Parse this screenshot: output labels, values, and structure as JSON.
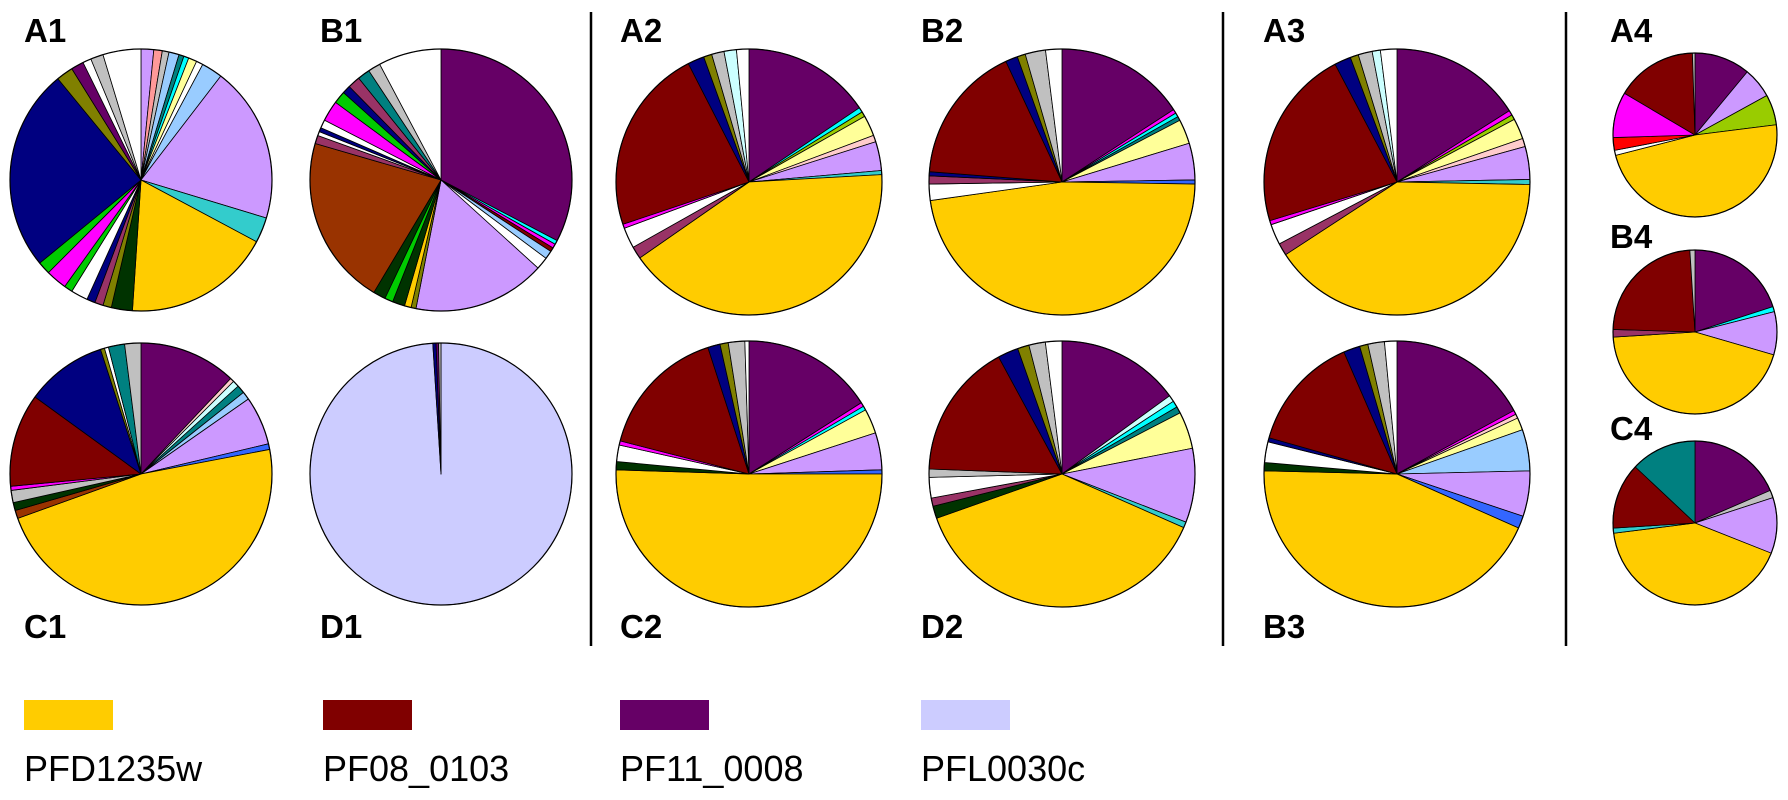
{
  "colors": {
    "PFD1235w": "#FFCC00",
    "PF08_0103": "#800000",
    "PF11_0008": "#660066",
    "PFL0030c": "#CCCCFF",
    "navy": "#000080",
    "lavender": "#CC99FF",
    "olive": "#808000",
    "teal": "#008080",
    "darkgreen": "#003300",
    "cyan": "#00FFFF",
    "lightyellow": "#FFFF99",
    "magenta": "#FF00FF",
    "brown": "#993300",
    "lightblue": "#99CCFF",
    "skyblue": "#CCFFFF",
    "green": "#00CC00",
    "pink": "#FF9999",
    "red": "#FF0000",
    "yellowgreen": "#99CC00",
    "blue": "#3366FF",
    "lightpink": "#FFCCCC",
    "white": "#FFFFFF",
    "gray": "#C0C0C0",
    "plum": "#993366",
    "darkteal": "#33CCCC",
    "dividers": "#000000"
  },
  "chart_data": {
    "type": "pie",
    "start": "12 o'clock",
    "direction": "clockwise",
    "units": "percent of panel total",
    "legend": [
      {
        "name": "PFD1235w",
        "color_key": "PFD1235w"
      },
      {
        "name": "PF08_0103",
        "color_key": "PF08_0103"
      },
      {
        "name": "PF11_0008",
        "color_key": "PF11_0008"
      },
      {
        "name": "PFL0030c",
        "color_key": "PFL0030c"
      }
    ],
    "panels": [
      {
        "label": "A1",
        "size": "large",
        "slices": [
          {
            "c": "lavender",
            "v": 1.5
          },
          {
            "c": "pink",
            "v": 1.0
          },
          {
            "c": "gray",
            "v": 0.8
          },
          {
            "c": "lightblue",
            "v": 1.2
          },
          {
            "c": "teal",
            "v": 0.6
          },
          {
            "c": "cyan",
            "v": 0.6
          },
          {
            "c": "lightyellow",
            "v": 1.0
          },
          {
            "c": "white",
            "v": 0.8
          },
          {
            "c": "lightblue",
            "v": 2.5
          },
          {
            "c": "lavender",
            "v": 18.5
          },
          {
            "c": "darkteal",
            "v": 3.0
          },
          {
            "c": "PFD1235w",
            "v": 17.5
          },
          {
            "c": "darkgreen",
            "v": 2.5
          },
          {
            "c": "olive",
            "v": 1.0
          },
          {
            "c": "plum",
            "v": 1.0
          },
          {
            "c": "navy",
            "v": 1.0
          },
          {
            "c": "white",
            "v": 2.0
          },
          {
            "c": "green",
            "v": 1.0
          },
          {
            "c": "magenta",
            "v": 2.5
          },
          {
            "c": "green",
            "v": 1.5
          },
          {
            "c": "navy",
            "v": 24.0
          },
          {
            "c": "olive",
            "v": 2.0
          },
          {
            "c": "PF11_0008",
            "v": 1.5
          },
          {
            "c": "white",
            "v": 1.0
          },
          {
            "c": "gray",
            "v": 1.5
          },
          {
            "c": "white",
            "v": 4.5
          }
        ]
      },
      {
        "label": "B1",
        "size": "large",
        "slices": [
          {
            "c": "PF11_0008",
            "v": 32.0
          },
          {
            "c": "cyan",
            "v": 0.5
          },
          {
            "c": "magenta",
            "v": 0.5
          },
          {
            "c": "PF08_0103",
            "v": 0.5
          },
          {
            "c": "lightblue",
            "v": 1.0
          },
          {
            "c": "white",
            "v": 1.5
          },
          {
            "c": "lavender",
            "v": 16.0
          },
          {
            "c": "olive",
            "v": 0.6
          },
          {
            "c": "PFD1235w",
            "v": 0.8
          },
          {
            "c": "darkgreen",
            "v": 1.5
          },
          {
            "c": "green",
            "v": 1.0
          },
          {
            "c": "darkgreen",
            "v": 1.5
          },
          {
            "c": "brown",
            "v": 20.5
          },
          {
            "c": "plum",
            "v": 1.0
          },
          {
            "c": "white",
            "v": 0.5
          },
          {
            "c": "navy",
            "v": 0.5
          },
          {
            "c": "white",
            "v": 1.0
          },
          {
            "c": "magenta",
            "v": 2.5
          },
          {
            "c": "green",
            "v": 1.5
          },
          {
            "c": "navy",
            "v": 1.0
          },
          {
            "c": "plum",
            "v": 1.5
          },
          {
            "c": "teal",
            "v": 1.5
          },
          {
            "c": "gray",
            "v": 1.5
          },
          {
            "c": "white",
            "v": 7.6
          }
        ]
      },
      {
        "label": "C1",
        "size": "large",
        "slices": [
          {
            "c": "PF11_0008",
            "v": 12.0
          },
          {
            "c": "lightpink",
            "v": 0.5
          },
          {
            "c": "skyblue",
            "v": 0.8
          },
          {
            "c": "teal",
            "v": 1.0
          },
          {
            "c": "lightblue",
            "v": 1.0
          },
          {
            "c": "lavender",
            "v": 6.0
          },
          {
            "c": "blue",
            "v": 0.7
          },
          {
            "c": "PFD1235w",
            "v": 47.5
          },
          {
            "c": "brown",
            "v": 1.0
          },
          {
            "c": "darkgreen",
            "v": 1.0
          },
          {
            "c": "gray",
            "v": 1.5
          },
          {
            "c": "magenta",
            "v": 0.5
          },
          {
            "c": "PF08_0103",
            "v": 11.5
          },
          {
            "c": "navy",
            "v": 10.0
          },
          {
            "c": "olive",
            "v": 0.5
          },
          {
            "c": "white",
            "v": 0.5
          },
          {
            "c": "teal",
            "v": 2.0
          },
          {
            "c": "gray",
            "v": 2.0
          }
        ]
      },
      {
        "label": "D1",
        "size": "large",
        "slices": [
          {
            "c": "PFL0030c",
            "v": 99.0
          },
          {
            "c": "navy",
            "v": 0.4
          },
          {
            "c": "PF11_0008",
            "v": 0.3
          },
          {
            "c": "gray",
            "v": 0.3
          }
        ]
      },
      {
        "label": "A2",
        "size": "large",
        "slices": [
          {
            "c": "PF11_0008",
            "v": 15.5
          },
          {
            "c": "cyan",
            "v": 0.6
          },
          {
            "c": "yellowgreen",
            "v": 0.6
          },
          {
            "c": "lightyellow",
            "v": 2.5
          },
          {
            "c": "lightpink",
            "v": 0.8
          },
          {
            "c": "lavender",
            "v": 3.5
          },
          {
            "c": "darkteal",
            "v": 0.5
          },
          {
            "c": "PFD1235w",
            "v": 41.0
          },
          {
            "c": "plum",
            "v": 1.5
          },
          {
            "c": "white",
            "v": 2.5
          },
          {
            "c": "magenta",
            "v": 0.5
          },
          {
            "c": "PF08_0103",
            "v": 22.5
          },
          {
            "c": "navy",
            "v": 2.0
          },
          {
            "c": "olive",
            "v": 1.0
          },
          {
            "c": "gray",
            "v": 1.5
          },
          {
            "c": "skyblue",
            "v": 1.5
          },
          {
            "c": "white",
            "v": 1.5
          }
        ]
      },
      {
        "label": "B2",
        "size": "large",
        "slices": [
          {
            "c": "PF11_0008",
            "v": 16.0
          },
          {
            "c": "magenta",
            "v": 0.5
          },
          {
            "c": "cyan",
            "v": 0.5
          },
          {
            "c": "teal",
            "v": 0.5
          },
          {
            "c": "lightyellow",
            "v": 3.0
          },
          {
            "c": "lavender",
            "v": 4.5
          },
          {
            "c": "blue",
            "v": 0.5
          },
          {
            "c": "PFD1235w",
            "v": 48.0
          },
          {
            "c": "white",
            "v": 2.0
          },
          {
            "c": "plum",
            "v": 1.0
          },
          {
            "c": "navy",
            "v": 0.5
          },
          {
            "c": "PF08_0103",
            "v": 17.0
          },
          {
            "c": "navy",
            "v": 1.5
          },
          {
            "c": "olive",
            "v": 1.0
          },
          {
            "c": "gray",
            "v": 2.5
          },
          {
            "c": "white",
            "v": 2.0
          }
        ]
      },
      {
        "label": "C2",
        "size": "large",
        "slices": [
          {
            "c": "PF11_0008",
            "v": 16.0
          },
          {
            "c": "magenta",
            "v": 0.5
          },
          {
            "c": "cyan",
            "v": 0.5
          },
          {
            "c": "lightyellow",
            "v": 3.0
          },
          {
            "c": "lavender",
            "v": 4.5
          },
          {
            "c": "blue",
            "v": 0.5
          },
          {
            "c": "PFD1235w",
            "v": 50.5
          },
          {
            "c": "darkgreen",
            "v": 1.0
          },
          {
            "c": "white",
            "v": 2.0
          },
          {
            "c": "magenta",
            "v": 0.5
          },
          {
            "c": "PF08_0103",
            "v": 16.0
          },
          {
            "c": "navy",
            "v": 1.5
          },
          {
            "c": "olive",
            "v": 1.0
          },
          {
            "c": "gray",
            "v": 2.0
          },
          {
            "c": "white",
            "v": 0.5
          }
        ]
      },
      {
        "label": "D2",
        "size": "large",
        "slices": [
          {
            "c": "PF11_0008",
            "v": 15.0
          },
          {
            "c": "skyblue",
            "v": 0.8
          },
          {
            "c": "cyan",
            "v": 0.8
          },
          {
            "c": "teal",
            "v": 0.8
          },
          {
            "c": "lightyellow",
            "v": 4.5
          },
          {
            "c": "lavender",
            "v": 9.0
          },
          {
            "c": "darkteal",
            "v": 0.7
          },
          {
            "c": "PFD1235w",
            "v": 38.0
          },
          {
            "c": "darkgreen",
            "v": 1.5
          },
          {
            "c": "plum",
            "v": 1.0
          },
          {
            "c": "white",
            "v": 2.5
          },
          {
            "c": "gray",
            "v": 1.0
          },
          {
            "c": "PF08_0103",
            "v": 16.5
          },
          {
            "c": "navy",
            "v": 2.5
          },
          {
            "c": "olive",
            "v": 1.4
          },
          {
            "c": "gray",
            "v": 2.0
          },
          {
            "c": "white",
            "v": 2.0
          }
        ]
      },
      {
        "label": "A3",
        "size": "large",
        "slices": [
          {
            "c": "PF11_0008",
            "v": 16.0
          },
          {
            "c": "magenta",
            "v": 0.6
          },
          {
            "c": "yellowgreen",
            "v": 0.6
          },
          {
            "c": "lightyellow",
            "v": 2.5
          },
          {
            "c": "lightpink",
            "v": 1.0
          },
          {
            "c": "lavender",
            "v": 4.0
          },
          {
            "c": "darkteal",
            "v": 0.6
          },
          {
            "c": "PFD1235w",
            "v": 40.5
          },
          {
            "c": "plum",
            "v": 1.5
          },
          {
            "c": "white",
            "v": 2.5
          },
          {
            "c": "magenta",
            "v": 0.5
          },
          {
            "c": "PF08_0103",
            "v": 22.0
          },
          {
            "c": "navy",
            "v": 2.0
          },
          {
            "c": "olive",
            "v": 1.0
          },
          {
            "c": "gray",
            "v": 1.7
          },
          {
            "c": "skyblue",
            "v": 1.0
          },
          {
            "c": "white",
            "v": 2.0
          }
        ]
      },
      {
        "label": "B3",
        "size": "large",
        "slices": [
          {
            "c": "PF11_0008",
            "v": 17.0
          },
          {
            "c": "magenta",
            "v": 0.5
          },
          {
            "c": "lightpink",
            "v": 0.5
          },
          {
            "c": "lightyellow",
            "v": 1.5
          },
          {
            "c": "lightblue",
            "v": 5.0
          },
          {
            "c": "lavender",
            "v": 5.5
          },
          {
            "c": "blue",
            "v": 1.5
          },
          {
            "c": "PFD1235w",
            "v": 43.5
          },
          {
            "c": "darkgreen",
            "v": 1.0
          },
          {
            "c": "white",
            "v": 2.5
          },
          {
            "c": "navy",
            "v": 0.5
          },
          {
            "c": "PF08_0103",
            "v": 14.0
          },
          {
            "c": "navy",
            "v": 2.0
          },
          {
            "c": "olive",
            "v": 1.0
          },
          {
            "c": "gray",
            "v": 2.0
          },
          {
            "c": "white",
            "v": 1.5
          }
        ]
      },
      {
        "label": "A4",
        "size": "small",
        "slices": [
          {
            "c": "PF11_0008",
            "v": 11.0
          },
          {
            "c": "lavender",
            "v": 6.0
          },
          {
            "c": "yellowgreen",
            "v": 6.0
          },
          {
            "c": "PFD1235w",
            "v": 48.0
          },
          {
            "c": "white",
            "v": 1.0
          },
          {
            "c": "red",
            "v": 2.5
          },
          {
            "c": "magenta",
            "v": 9.0
          },
          {
            "c": "PF08_0103",
            "v": 16.0
          },
          {
            "c": "gray",
            "v": 0.5
          }
        ]
      },
      {
        "label": "B4",
        "size": "small",
        "slices": [
          {
            "c": "PF11_0008",
            "v": 20.0
          },
          {
            "c": "cyan",
            "v": 1.0
          },
          {
            "c": "lavender",
            "v": 8.5
          },
          {
            "c": "PFD1235w",
            "v": 44.5
          },
          {
            "c": "plum",
            "v": 1.5
          },
          {
            "c": "PF08_0103",
            "v": 23.5
          },
          {
            "c": "gray",
            "v": 1.0
          }
        ]
      },
      {
        "label": "C4",
        "size": "small",
        "slices": [
          {
            "c": "PF11_0008",
            "v": 18.5
          },
          {
            "c": "gray",
            "v": 1.5
          },
          {
            "c": "lavender",
            "v": 11.0
          },
          {
            "c": "PFD1235w",
            "v": 42.0
          },
          {
            "c": "darkteal",
            "v": 1.0
          },
          {
            "c": "PF08_0103",
            "v": 13.0
          },
          {
            "c": "teal",
            "v": 13.0
          }
        ]
      }
    ]
  }
}
